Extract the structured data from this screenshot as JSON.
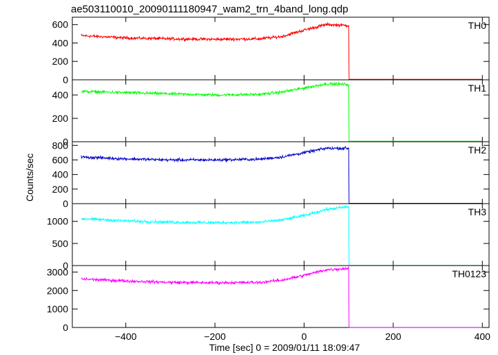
{
  "title": "ae503110010_20090111180947_wam2_trn_4band_long.qdp",
  "chart_data": {
    "type": "line",
    "title": "ae503110010_20090111180947_wam2_trn_4band_long.qdp",
    "xlabel": "Time [sec] 0 = 2009/01/11 18:09:47",
    "ylabel": "Counts/sec",
    "xlim": [
      -520,
      415
    ],
    "x_ticks": [
      -400,
      -200,
      0,
      200,
      400
    ],
    "grid": false,
    "legend": "none",
    "panels": [
      {
        "name": "TH0",
        "color": "#ff0000",
        "ylim": [
          0,
          680
        ],
        "y_ticks": [
          0,
          200,
          400,
          600
        ],
        "x": [
          -500,
          -400,
          -300,
          -200,
          -100,
          -50,
          0,
          50,
          100,
          101,
          400
        ],
        "values": [
          480,
          455,
          445,
          440,
          445,
          470,
          540,
          600,
          590,
          5,
          5
        ]
      },
      {
        "name": "TH1",
        "color": "#00ff00",
        "ylim": [
          0,
          530
        ],
        "y_ticks": [
          0,
          200,
          400
        ],
        "x": [
          -500,
          -400,
          -300,
          -200,
          -100,
          -50,
          0,
          50,
          100,
          101,
          400
        ],
        "values": [
          430,
          420,
          410,
          400,
          405,
          425,
          460,
          495,
          490,
          5,
          5
        ]
      },
      {
        "name": "TH2",
        "color": "#0000cc",
        "ylim": [
          0,
          850
        ],
        "y_ticks": [
          0,
          200,
          400,
          600,
          800
        ],
        "x": [
          -500,
          -400,
          -300,
          -200,
          -100,
          -50,
          0,
          50,
          100,
          101,
          400
        ],
        "values": [
          640,
          615,
          600,
          600,
          610,
          640,
          700,
          760,
          760,
          5,
          5
        ]
      },
      {
        "name": "TH3",
        "color": "#00ffff",
        "ylim": [
          0,
          1400
        ],
        "y_ticks": [
          0,
          500,
          1000
        ],
        "x": [
          -500,
          -400,
          -300,
          -200,
          -100,
          -50,
          0,
          50,
          100,
          101,
          400
        ],
        "values": [
          1060,
          1010,
          980,
          970,
          980,
          1030,
          1130,
          1270,
          1330,
          5,
          5
        ]
      },
      {
        "name": "TH0123",
        "color": "#ff00ff",
        "ylim": [
          0,
          3350
        ],
        "y_ticks": [
          0,
          1000,
          2000,
          3000
        ],
        "x": [
          -500,
          -400,
          -300,
          -200,
          -100,
          -50,
          0,
          50,
          100,
          101,
          400
        ],
        "values": [
          2620,
          2520,
          2440,
          2420,
          2440,
          2560,
          2820,
          3120,
          3200,
          5,
          5
        ]
      }
    ]
  }
}
